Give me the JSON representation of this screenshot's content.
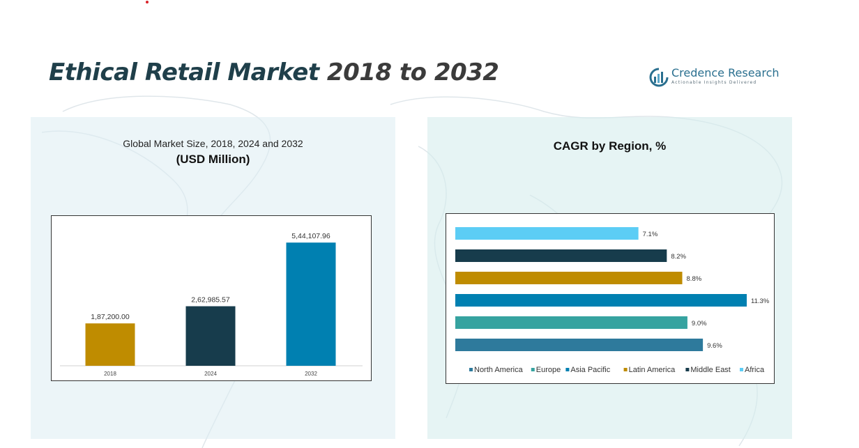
{
  "page": {
    "title_part1": "Ethical Retail Market ",
    "title_part2": "2018 to 2032"
  },
  "logo": {
    "name": "Credence Research",
    "tagline": "Actionable Insights Delivered"
  },
  "colors": {
    "title": "#1f3f4a",
    "accent_red": "#d9232a",
    "left_panel": "#dcecf3",
    "right_panel": "#d6ecec"
  },
  "chart_data": [
    {
      "type": "bar",
      "title": "Global Market Size, 2018, 2024 and 2032",
      "subtitle": "(USD Million)",
      "categories": [
        "2018",
        "2024",
        "2032"
      ],
      "values": [
        187200.0,
        262985.57,
        544107.96
      ],
      "value_labels": [
        "1,87,200.00",
        "2,62,985.57",
        "5,44,107.96"
      ],
      "colors": [
        "#bf8c00",
        "#173c4c",
        "#0080b1"
      ],
      "ylim": [
        0,
        600000
      ],
      "grid": false,
      "xlabel": "",
      "ylabel": ""
    },
    {
      "type": "bar",
      "orientation": "horizontal",
      "title": "CAGR by Region, %",
      "categories": [
        "North America",
        "Europe",
        "Asia Pacific",
        "Latin America",
        "Middle East",
        "Africa"
      ],
      "values": [
        9.6,
        9.0,
        11.3,
        8.8,
        8.2,
        7.1
      ],
      "value_labels": [
        "9.6%",
        "9.0%",
        "11.3%",
        "8.8%",
        "8.2%",
        "7.1%"
      ],
      "colors": [
        "#2e7a9c",
        "#36a3a0",
        "#0080b1",
        "#bf8c00",
        "#173c4c",
        "#5ccdf5"
      ],
      "xlim": [
        0,
        11.3
      ],
      "grid": false,
      "legend": "bottom"
    }
  ]
}
